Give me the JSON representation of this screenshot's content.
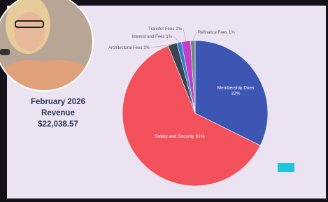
{
  "chart_data": {
    "type": "pie",
    "title_lines": [
      "February 2026",
      "Revenue",
      "$22,038.57"
    ],
    "categories": [
      "Membership Dues",
      "Safety and Security",
      "Architectural Fees",
      "Interest and Fees",
      "Transfer Fees",
      "Refinance Fees"
    ],
    "values": [
      32,
      61,
      2,
      1,
      2,
      1
    ],
    "value_labels": [
      "32%",
      "61%",
      "2%",
      "1%",
      "2%",
      "1%"
    ],
    "colors": [
      "#3d56b4",
      "#f2515c",
      "#3b4652",
      "#2f7fd2",
      "#c23fc6",
      "#6f8c84"
    ]
  }
}
